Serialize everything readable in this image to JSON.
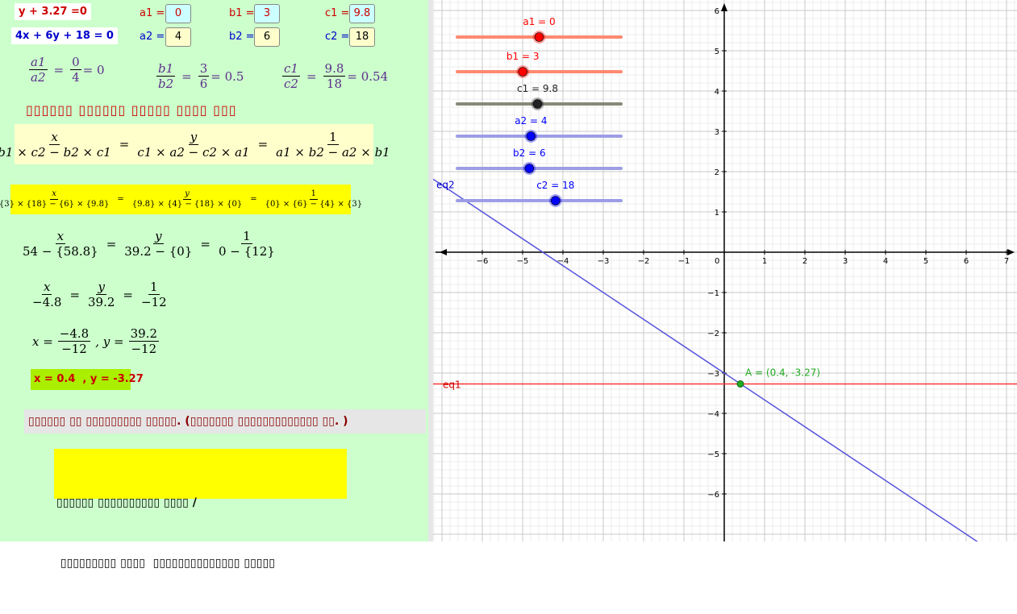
{
  "equations": {
    "eq1": "y + 3.27 =0",
    "eq2": "4x + 6y + 18 = 0"
  },
  "params": [
    {
      "label": "a1 =",
      "value": "0",
      "color": "#cc0000",
      "box": "#ccffff"
    },
    {
      "label": "b1 =",
      "value": "3",
      "color": "#cc0000",
      "box": "#ccffff"
    },
    {
      "label": "c1 =",
      "value": "9.8",
      "color": "#cc0000",
      "box": "#ccffff"
    },
    {
      "label": "a2 =",
      "value": "4",
      "color": "#0000cc",
      "box": "#ffffcc"
    },
    {
      "label": "b2 =",
      "value": "6",
      "color": "#0000cc",
      "box": "#ffffcc"
    },
    {
      "label": "c2 =",
      "value": "18",
      "color": "#0000cc",
      "box": "#ffffcc"
    }
  ],
  "ratios": {
    "r1": {
      "num": "a1",
      "den": "a2",
      "vnum": "0",
      "vden": "4",
      "result": "= 0"
    },
    "r2": {
      "num": "b1",
      "den": "b2",
      "vnum": "3",
      "vden": "6",
      "result": "= 0.5"
    },
    "r3": {
      "num": "c1",
      "den": "c2",
      "vnum": "9.8",
      "vden": "18",
      "result": "= 0.54"
    }
  },
  "heading_text": "▯▯▯▯▯▯  ▯▯▯▯▯▯  ▯▯▯▯▯  ▯▯▯▯  ▯▯▯",
  "formula": {
    "x": "x",
    "y": "y",
    "one": "1",
    "den1": "b1 × c2 − b2 × c1",
    "den2": "c1 × a2 − c2 × a1",
    "den3": "a1 × b2 − a2 × b1"
  },
  "subst": {
    "x": "x",
    "y": "y",
    "one": "1",
    "den1": "{3} × {18} − {6} × {9.8}",
    "den2": "{9.8} × {4} − {18} × {0}",
    "den3": "{0} × {6} − {4} × {3}"
  },
  "step1": {
    "den1": "54 − {58.8}",
    "den2": "39.2 − {0}",
    "den3": "0 − {12}"
  },
  "step2": {
    "den1": "−4.8",
    "den2": "39.2",
    "den3": "−12"
  },
  "step3": {
    "xnum": "−4.8",
    "xden": "−12",
    "ynum": "39.2",
    "yden": "−12",
    "xlab": "x =",
    "ylab": ", y ="
  },
  "result_box": "x = 0.4  , y = -3.27",
  "note_text": "▯▯▯▯▯▯ ▯▯ ▯▯▯▯▯▯▯▯▯ ▯▯▯▯▯. (▯▯▯▯▯▯▯ ▯▯▯▯▯▯▯▯▯▯▯▯▯ ▯▯. )",
  "footer": {
    "line1": "▯▯▯▯▯▯ ▯▯▯▯▯▯▯▯▯▯ ▯▯▯▯ /",
    "line2": " ▯▯▯▯▯▯▯▯▯ ▯▯▯▯  ▯▯▯▯▯▯▯▯▯▯▯▯▯▯ ▯▯▯▯▯"
  },
  "sliders": [
    {
      "label": "a1 = 0",
      "value": 0,
      "min": -5,
      "max": 5,
      "color": "#ff0000",
      "track": "#ff8a70"
    },
    {
      "label": "b1 = 3",
      "value": 3,
      "min": -5,
      "max": 15,
      "color": "#ff0000",
      "track": "#ff8a70"
    },
    {
      "label": "c1 = 9.8",
      "value": 9.8,
      "min": 0,
      "max": 20,
      "color": "#222222",
      "track": "#888877"
    },
    {
      "label": "a2 = 4",
      "value": 4,
      "min": -5,
      "max": 15,
      "color": "#0000ff",
      "track": "#9d9de6"
    },
    {
      "label": "b2 = 6",
      "value": 6,
      "min": -5,
      "max": 20,
      "color": "#0000ff",
      "track": "#9d9de6"
    },
    {
      "label": "c2 = 18",
      "value": 18,
      "min": 0,
      "max": 30,
      "color": "#0000ff",
      "track": "#9d9de6"
    }
  ],
  "graph": {
    "xlim": [
      -7.2,
      7.2
    ],
    "ylim": [
      -6.9,
      6.3
    ],
    "xticks": [
      "−6",
      "−5",
      "−4",
      "−3",
      "−2",
      "−1",
      "0",
      "1",
      "2",
      "3",
      "4",
      "5",
      "6",
      "7"
    ],
    "yticks": [
      "6",
      "5",
      "4",
      "3",
      "2",
      "1",
      "−1",
      "−2",
      "−3",
      "−4",
      "−5",
      "−6"
    ],
    "eq1_label": "eq1",
    "eq2_label": "eq2",
    "point_label": "A = (0.4, -3.27)",
    "point": [
      0.4,
      -3.27
    ],
    "eq1_color": "#ff3333",
    "eq2_color": "#5555dd",
    "point_color": "#22aa22"
  }
}
